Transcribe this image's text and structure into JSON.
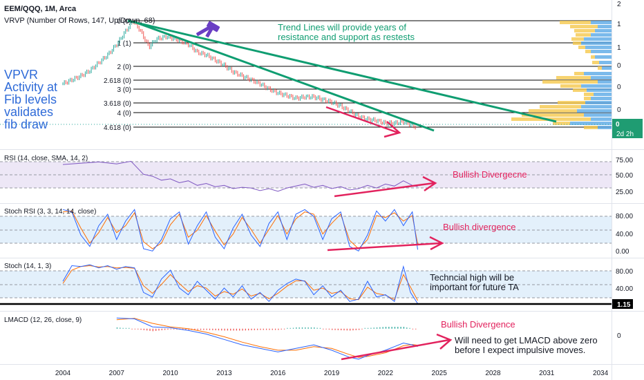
{
  "header": {
    "symbol_line": "EEM/QQQ, 1M, Arca",
    "vrvp_line": "VRVP (Number Of Rows, 147, Up/Down, 68)"
  },
  "fib_levels": [
    {
      "label": "0 (0)",
      "value": 0
    },
    {
      "label": "1 (1)",
      "value": 1
    },
    {
      "label": "2 (0)",
      "value": 2
    },
    {
      "label": "2.618 (0)",
      "value": 2.618
    },
    {
      "label": "3 (0)",
      "value": 3
    },
    {
      "label": "3.618 (0)",
      "value": 3.618
    },
    {
      "label": "4 (0)",
      "value": 4
    },
    {
      "label": "4.618 (0)",
      "value": 4.618
    }
  ],
  "right_axis": {
    "main_ticks": [
      "2",
      "1",
      "1",
      "0",
      "0",
      "0",
      "0"
    ],
    "last_price_label": "0",
    "countdown_label": "2d 2h",
    "rsi_ticks": [
      "75.00",
      "50.00",
      "25.00"
    ],
    "stochrsi_ticks": [
      "80.00",
      "40.00",
      "0.00"
    ],
    "stoch_ticks": [
      "80.00",
      "40.00"
    ],
    "stoch_highlight": "1.15",
    "lmacd_ticks": [
      "0"
    ]
  },
  "time_axis": [
    "2004",
    "2007",
    "2010",
    "2013",
    "2016",
    "2019",
    "2022",
    "2025",
    "2028",
    "2031",
    "2034"
  ],
  "annotations": {
    "vpvr_note": [
      "VPVR",
      "Activity at",
      "Fib levels",
      "validates",
      "fib draw"
    ],
    "trend_note": [
      "Trend Lines will provide years of",
      "resistance and support as restests"
    ],
    "rsi_note": "Bullish Divergecne",
    "stochrsi_note": "Bullish divergence",
    "stoch_note": [
      "Techncial high will be",
      "important for future TA"
    ],
    "lmacd_note": "Bullish Divergence",
    "lmacd_note2": [
      "Will need to get LMACD above zero",
      "before I expect impulsive moves."
    ]
  },
  "panes": {
    "rsi_label": "RSI (14, close, SMA, 14, 2)",
    "stochrsi_label": "Stoch RSI (3, 3, 14, 14, close)",
    "stoch_label": "Stoch (14, 1, 3)",
    "lmacd_label": "LMACD (12, 26, close, 9)"
  },
  "colors": {
    "trendline": "#0f9d71",
    "annotation_pink": "#e2225d",
    "annotation_blue": "#2f6bd8",
    "rsi_line": "#7e57c2",
    "rsi_band": "#ede7f6",
    "stoch_k": "#2962ff",
    "stoch_d": "#ff6d00",
    "band_blue": "#e3f0fb",
    "volume_blue": "#5aa9e6",
    "volume_yellow": "#f5c84c",
    "candle_up": "#26a69a",
    "candle_down": "#ef5350",
    "label_green": "#1f9c72"
  },
  "chart_data": {
    "type": "line",
    "x_range": [
      2004,
      2035
    ],
    "rsi_range": [
      15,
      85
    ],
    "stoch_range": [
      -5,
      100
    ],
    "price_series": [
      [
        2004.0,
        0.52
      ],
      [
        2004.5,
        0.55
      ],
      [
        2005.0,
        0.58
      ],
      [
        2005.5,
        0.62
      ],
      [
        2006.0,
        0.68
      ],
      [
        2006.5,
        0.74
      ],
      [
        2007.0,
        0.82
      ],
      [
        2007.5,
        0.92
      ],
      [
        2007.9,
        1.0
      ],
      [
        2008.3,
        0.93
      ],
      [
        2008.8,
        0.8
      ],
      [
        2009.2,
        0.86
      ],
      [
        2009.8,
        0.88
      ],
      [
        2010.5,
        0.85
      ],
      [
        2011.0,
        0.82
      ],
      [
        2011.5,
        0.76
      ],
      [
        2012.0,
        0.74
      ],
      [
        2012.5,
        0.7
      ],
      [
        2013.0,
        0.66
      ],
      [
        2013.5,
        0.61
      ],
      [
        2014.0,
        0.58
      ],
      [
        2014.5,
        0.55
      ],
      [
        2015.0,
        0.52
      ],
      [
        2015.5,
        0.48
      ],
      [
        2016.0,
        0.45
      ],
      [
        2016.5,
        0.43
      ],
      [
        2017.0,
        0.41
      ],
      [
        2017.5,
        0.42
      ],
      [
        2018.0,
        0.42
      ],
      [
        2018.5,
        0.4
      ],
      [
        2019.0,
        0.38
      ],
      [
        2019.5,
        0.35
      ],
      [
        2020.0,
        0.31
      ],
      [
        2020.5,
        0.27
      ],
      [
        2021.0,
        0.25
      ],
      [
        2021.5,
        0.24
      ],
      [
        2022.0,
        0.22
      ],
      [
        2022.5,
        0.22
      ],
      [
        2023.0,
        0.23
      ],
      [
        2023.4,
        0.21
      ],
      [
        2023.7,
        0.19
      ]
    ],
    "rsi_series": [
      [
        2004.0,
        70
      ],
      [
        2005.0,
        72
      ],
      [
        2006.0,
        74
      ],
      [
        2007.0,
        71
      ],
      [
        2007.8,
        75
      ],
      [
        2008.5,
        55
      ],
      [
        2009.0,
        52
      ],
      [
        2009.5,
        46
      ],
      [
        2010.0,
        48
      ],
      [
        2010.5,
        42
      ],
      [
        2011.0,
        45
      ],
      [
        2011.5,
        38
      ],
      [
        2012.0,
        41
      ],
      [
        2012.5,
        36
      ],
      [
        2013.0,
        38
      ],
      [
        2013.5,
        33
      ],
      [
        2014.0,
        35
      ],
      [
        2014.5,
        34
      ],
      [
        2015.0,
        30
      ],
      [
        2015.5,
        33
      ],
      [
        2016.0,
        29
      ],
      [
        2016.5,
        34
      ],
      [
        2017.0,
        37
      ],
      [
        2017.5,
        40
      ],
      [
        2018.0,
        35
      ],
      [
        2018.5,
        38
      ],
      [
        2019.0,
        33
      ],
      [
        2019.5,
        36
      ],
      [
        2020.0,
        31
      ],
      [
        2020.5,
        33
      ],
      [
        2021.0,
        38
      ],
      [
        2021.5,
        34
      ],
      [
        2022.0,
        40
      ],
      [
        2022.5,
        37
      ],
      [
        2023.0,
        45
      ],
      [
        2023.5,
        38
      ],
      [
        2023.8,
        36
      ]
    ],
    "stochrsi_k": [
      [
        2004.0,
        95
      ],
      [
        2004.5,
        90
      ],
      [
        2005.0,
        40
      ],
      [
        2005.5,
        15
      ],
      [
        2006.0,
        60
      ],
      [
        2006.5,
        85
      ],
      [
        2007.0,
        30
      ],
      [
        2007.5,
        70
      ],
      [
        2008.0,
        95
      ],
      [
        2008.5,
        10
      ],
      [
        2009.0,
        5
      ],
      [
        2009.5,
        30
      ],
      [
        2010.0,
        75
      ],
      [
        2010.5,
        90
      ],
      [
        2011.0,
        20
      ],
      [
        2011.5,
        60
      ],
      [
        2012.0,
        90
      ],
      [
        2012.5,
        35
      ],
      [
        2013.0,
        10
      ],
      [
        2013.5,
        55
      ],
      [
        2014.0,
        85
      ],
      [
        2014.5,
        40
      ],
      [
        2015.0,
        15
      ],
      [
        2015.5,
        65
      ],
      [
        2016.0,
        90
      ],
      [
        2016.5,
        30
      ],
      [
        2017.0,
        85
      ],
      [
        2017.5,
        95
      ],
      [
        2018.0,
        80
      ],
      [
        2018.5,
        30
      ],
      [
        2019.0,
        75
      ],
      [
        2019.5,
        90
      ],
      [
        2020.0,
        15
      ],
      [
        2020.5,
        5
      ],
      [
        2021.0,
        40
      ],
      [
        2021.5,
        92
      ],
      [
        2022.0,
        70
      ],
      [
        2022.5,
        95
      ],
      [
        2023.0,
        60
      ],
      [
        2023.5,
        90
      ],
      [
        2023.8,
        8
      ]
    ],
    "stochrsi_d": [
      [
        2004.0,
        90
      ],
      [
        2004.5,
        92
      ],
      [
        2005.0,
        55
      ],
      [
        2005.5,
        22
      ],
      [
        2006.0,
        45
      ],
      [
        2006.5,
        78
      ],
      [
        2007.0,
        45
      ],
      [
        2007.5,
        60
      ],
      [
        2008.0,
        88
      ],
      [
        2008.5,
        25
      ],
      [
        2009.0,
        10
      ],
      [
        2009.5,
        22
      ],
      [
        2010.0,
        62
      ],
      [
        2010.5,
        85
      ],
      [
        2011.0,
        35
      ],
      [
        2011.5,
        50
      ],
      [
        2012.0,
        82
      ],
      [
        2012.5,
        48
      ],
      [
        2013.0,
        18
      ],
      [
        2013.5,
        42
      ],
      [
        2014.0,
        78
      ],
      [
        2014.5,
        52
      ],
      [
        2015.0,
        22
      ],
      [
        2015.5,
        52
      ],
      [
        2016.0,
        82
      ],
      [
        2016.5,
        42
      ],
      [
        2017.0,
        75
      ],
      [
        2017.5,
        90
      ],
      [
        2018.0,
        85
      ],
      [
        2018.5,
        42
      ],
      [
        2019.0,
        65
      ],
      [
        2019.5,
        85
      ],
      [
        2020.0,
        28
      ],
      [
        2020.5,
        10
      ],
      [
        2021.0,
        30
      ],
      [
        2021.5,
        82
      ],
      [
        2022.0,
        78
      ],
      [
        2022.5,
        88
      ],
      [
        2023.0,
        70
      ],
      [
        2023.5,
        82
      ],
      [
        2023.8,
        20
      ]
    ],
    "stoch_k": [
      [
        2004.0,
        55
      ],
      [
        2004.5,
        90
      ],
      [
        2005.0,
        88
      ],
      [
        2005.5,
        92
      ],
      [
        2006.0,
        85
      ],
      [
        2006.5,
        90
      ],
      [
        2007.0,
        82
      ],
      [
        2007.5,
        88
      ],
      [
        2008.0,
        85
      ],
      [
        2008.5,
        30
      ],
      [
        2009.0,
        20
      ],
      [
        2009.5,
        60
      ],
      [
        2010.0,
        80
      ],
      [
        2010.5,
        40
      ],
      [
        2011.0,
        25
      ],
      [
        2011.5,
        55
      ],
      [
        2012.0,
        35
      ],
      [
        2012.5,
        15
      ],
      [
        2013.0,
        40
      ],
      [
        2013.5,
        20
      ],
      [
        2014.0,
        45
      ],
      [
        2014.5,
        15
      ],
      [
        2015.0,
        30
      ],
      [
        2015.5,
        10
      ],
      [
        2016.0,
        35
      ],
      [
        2016.5,
        50
      ],
      [
        2017.0,
        60
      ],
      [
        2017.5,
        55
      ],
      [
        2018.0,
        25
      ],
      [
        2018.5,
        45
      ],
      [
        2019.0,
        20
      ],
      [
        2019.5,
        35
      ],
      [
        2020.0,
        10
      ],
      [
        2020.5,
        15
      ],
      [
        2021.0,
        55
      ],
      [
        2021.5,
        20
      ],
      [
        2022.0,
        25
      ],
      [
        2022.5,
        10
      ],
      [
        2023.0,
        88
      ],
      [
        2023.4,
        30
      ],
      [
        2023.8,
        5
      ]
    ],
    "stoch_d": [
      [
        2004.0,
        50
      ],
      [
        2004.5,
        80
      ],
      [
        2005.0,
        88
      ],
      [
        2005.5,
        90
      ],
      [
        2006.0,
        87
      ],
      [
        2006.5,
        88
      ],
      [
        2007.0,
        85
      ],
      [
        2007.5,
        86
      ],
      [
        2008.0,
        84
      ],
      [
        2008.5,
        45
      ],
      [
        2009.0,
        28
      ],
      [
        2009.5,
        48
      ],
      [
        2010.0,
        70
      ],
      [
        2010.5,
        50
      ],
      [
        2011.0,
        32
      ],
      [
        2011.5,
        45
      ],
      [
        2012.0,
        40
      ],
      [
        2012.5,
        22
      ],
      [
        2013.0,
        32
      ],
      [
        2013.5,
        26
      ],
      [
        2014.0,
        38
      ],
      [
        2014.5,
        22
      ],
      [
        2015.0,
        28
      ],
      [
        2015.5,
        16
      ],
      [
        2016.0,
        28
      ],
      [
        2016.5,
        44
      ],
      [
        2017.0,
        56
      ],
      [
        2017.5,
        56
      ],
      [
        2018.0,
        35
      ],
      [
        2018.5,
        40
      ],
      [
        2019.0,
        28
      ],
      [
        2019.5,
        32
      ],
      [
        2020.0,
        16
      ],
      [
        2020.5,
        14
      ],
      [
        2021.0,
        42
      ],
      [
        2021.5,
        28
      ],
      [
        2022.0,
        24
      ],
      [
        2022.5,
        14
      ],
      [
        2023.0,
        70
      ],
      [
        2023.4,
        42
      ],
      [
        2023.8,
        12
      ]
    ],
    "lmacd_macd": [
      [
        2007.0,
        0.6
      ],
      [
        2008.0,
        0.55
      ],
      [
        2009.0,
        0.1
      ],
      [
        2010.0,
        0.05
      ],
      [
        2011.0,
        -0.1
      ],
      [
        2012.0,
        -0.3
      ],
      [
        2013.0,
        -0.6
      ],
      [
        2014.0,
        -0.9
      ],
      [
        2015.0,
        -1.1
      ],
      [
        2016.0,
        -1.3
      ],
      [
        2017.0,
        -1.1
      ],
      [
        2018.0,
        -0.9
      ],
      [
        2019.0,
        -1.2
      ],
      [
        2020.0,
        -1.6
      ],
      [
        2020.5,
        -1.7
      ],
      [
        2021.0,
        -1.5
      ],
      [
        2022.0,
        -1.2
      ],
      [
        2022.5,
        -1.0
      ],
      [
        2023.0,
        -0.8
      ],
      [
        2023.5,
        -0.9
      ],
      [
        2023.8,
        -1.0
      ]
    ],
    "lmacd_signal": [
      [
        2007.0,
        0.5
      ],
      [
        2008.0,
        0.58
      ],
      [
        2009.0,
        0.3
      ],
      [
        2010.0,
        0.1
      ],
      [
        2011.0,
        0.0
      ],
      [
        2012.0,
        -0.2
      ],
      [
        2013.0,
        -0.45
      ],
      [
        2014.0,
        -0.75
      ],
      [
        2015.0,
        -1.0
      ],
      [
        2016.0,
        -1.2
      ],
      [
        2017.0,
        -1.2
      ],
      [
        2018.0,
        -1.0
      ],
      [
        2019.0,
        -1.1
      ],
      [
        2020.0,
        -1.45
      ],
      [
        2020.5,
        -1.6
      ],
      [
        2021.0,
        -1.55
      ],
      [
        2022.0,
        -1.35
      ],
      [
        2022.5,
        -1.15
      ],
      [
        2023.0,
        -0.95
      ],
      [
        2023.5,
        -0.88
      ],
      [
        2023.8,
        -0.92
      ]
    ]
  }
}
